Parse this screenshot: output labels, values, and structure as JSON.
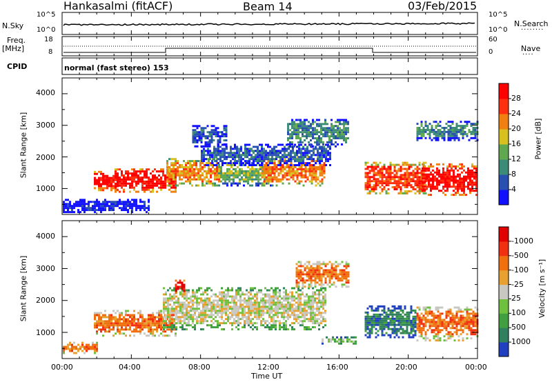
{
  "header": {
    "station": "Hankasalmi (fitACF)",
    "beam": "Beam 14",
    "date": "03/Feb/2015"
  },
  "noise_panel": {
    "left_label": "N.Sky",
    "right_label": "N.Search",
    "ticks_left": [
      "10^5",
      "10^0"
    ],
    "ticks_right": [
      "10^5",
      "10^0"
    ]
  },
  "freq_panel": {
    "left_label": "Freq.",
    "unit": "[MHz]",
    "ticks_left": [
      "18",
      "8"
    ],
    "right_label": "Nave",
    "ticks_right": [
      "60",
      "0"
    ]
  },
  "cpid": {
    "label": "CPID",
    "text": "normal (fast stereo) 153"
  },
  "x_axis": {
    "label": "Time UT",
    "ticks": [
      "00:00",
      "04:00",
      "08:00",
      "12:00",
      "16:00",
      "20:00",
      "00:00"
    ]
  },
  "chart_data": [
    {
      "type": "heatmap",
      "title": "",
      "xlabel": "Time UT",
      "ylabel": "Slant Range [km]",
      "x_range_hours": [
        0,
        24
      ],
      "ylim": [
        180,
        4500
      ],
      "y_ticks": [
        1000,
        2000,
        3000,
        4000
      ],
      "colorbar": {
        "label": "Power [dB]",
        "ticks": [
          "4",
          "8",
          "12",
          "16",
          "20",
          "24",
          "28"
        ],
        "colors": [
          "#1010ff",
          "#2850b0",
          "#3c8a78",
          "#60a850",
          "#d8c020",
          "#f08010",
          "#ff3010",
          "#ff0000"
        ]
      },
      "regions": [
        {
          "t0": 1.8,
          "t1": 3.2,
          "r0": 900,
          "r1": 1500,
          "level": 7
        },
        {
          "t0": 3.0,
          "t1": 6.5,
          "r0": 850,
          "r1": 1600,
          "level": 7
        },
        {
          "t0": 6.0,
          "t1": 9.0,
          "r0": 1050,
          "r1": 1900,
          "level": 5
        },
        {
          "t0": 9.0,
          "t1": 12.0,
          "r0": 1050,
          "r1": 1800,
          "level": 3
        },
        {
          "t0": 11.5,
          "t1": 15.2,
          "r0": 1050,
          "r1": 2000,
          "level": 5
        },
        {
          "t0": 8.0,
          "t1": 15.5,
          "r0": 1700,
          "r1": 2400,
          "level": 1
        },
        {
          "t0": 7.5,
          "t1": 9.5,
          "r0": 2300,
          "r1": 3000,
          "level": 1
        },
        {
          "t0": 13.0,
          "t1": 16.5,
          "r0": 2300,
          "r1": 3200,
          "level": 2
        },
        {
          "t0": 17.5,
          "t1": 21.0,
          "r0": 800,
          "r1": 1800,
          "level": 6
        },
        {
          "t0": 20.8,
          "t1": 24.0,
          "r0": 750,
          "r1": 1750,
          "level": 7
        },
        {
          "t0": 20.5,
          "t1": 24.0,
          "r0": 2500,
          "r1": 3100,
          "level": 2
        },
        {
          "t0": 0.0,
          "t1": 5.0,
          "r0": 200,
          "r1": 600,
          "level": 0
        }
      ]
    },
    {
      "type": "heatmap",
      "title": "",
      "xlabel": "Time UT",
      "ylabel": "Slant Range [km]",
      "x_range_hours": [
        0,
        24
      ],
      "ylim": [
        180,
        4500
      ],
      "y_ticks": [
        1000,
        2000,
        3000,
        4000
      ],
      "colorbar": {
        "label": "Velocity [m s⁻¹]",
        "ticks": [
          "1000",
          "500",
          "100",
          "25",
          "-25",
          "-100",
          "-500",
          "-1000"
        ],
        "colors": [
          "#2040c0",
          "#308060",
          "#40a040",
          "#70c040",
          "#c8c8c0",
          "#e8a030",
          "#f07010",
          "#f03010",
          "#e00000"
        ]
      },
      "regions": [
        {
          "t0": 1.8,
          "t1": 6.5,
          "r0": 850,
          "r1": 1650,
          "level": 6
        },
        {
          "t0": 5.8,
          "t1": 15.2,
          "r0": 1050,
          "r1": 2400,
          "level": 4
        },
        {
          "t0": 6.5,
          "t1": 7.0,
          "r0": 2200,
          "r1": 2600,
          "level": 8
        },
        {
          "t0": 13.5,
          "t1": 16.5,
          "r0": 2400,
          "r1": 3200,
          "level": 6
        },
        {
          "t0": 17.5,
          "t1": 20.5,
          "r0": 800,
          "r1": 1800,
          "level": 1
        },
        {
          "t0": 20.5,
          "t1": 24.0,
          "r0": 700,
          "r1": 1800,
          "level": 6
        },
        {
          "t0": 15.0,
          "t1": 17.0,
          "r0": 600,
          "r1": 800,
          "level": 3
        },
        {
          "t0": 0.0,
          "t1": 2.0,
          "r0": 300,
          "r1": 650,
          "level": 6
        }
      ]
    }
  ]
}
